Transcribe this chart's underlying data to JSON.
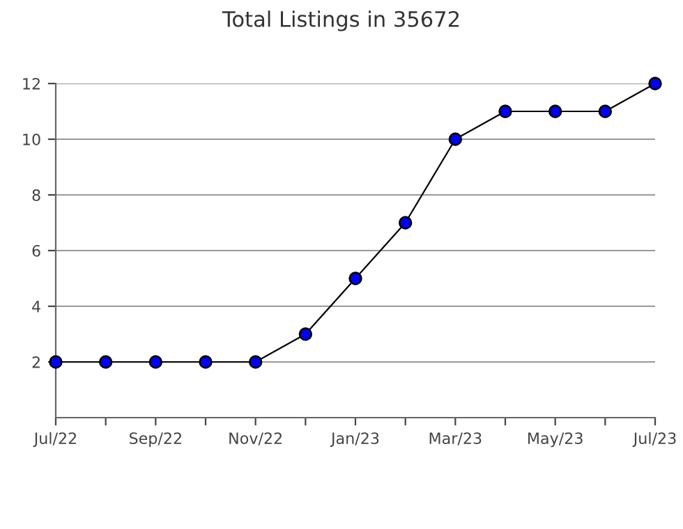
{
  "chart_data": {
    "type": "line",
    "title": "Total Listings in 35672",
    "categories": [
      "Jul/22",
      null,
      "Sep/22",
      null,
      "Nov/22",
      null,
      "Jan/23",
      null,
      "Mar/23",
      null,
      "May/23",
      null,
      "Jul/23"
    ],
    "series": [
      {
        "color": "#0000ff",
        "values": [
          2,
          2,
          2,
          2,
          2,
          3,
          5,
          7,
          10,
          11,
          11,
          11,
          12
        ]
      }
    ],
    "ylim": [
      0,
      12
    ],
    "yticks": [
      2,
      4,
      6,
      8,
      10,
      12
    ],
    "grid": "y",
    "marker": "circle",
    "line_style": "solid"
  }
}
